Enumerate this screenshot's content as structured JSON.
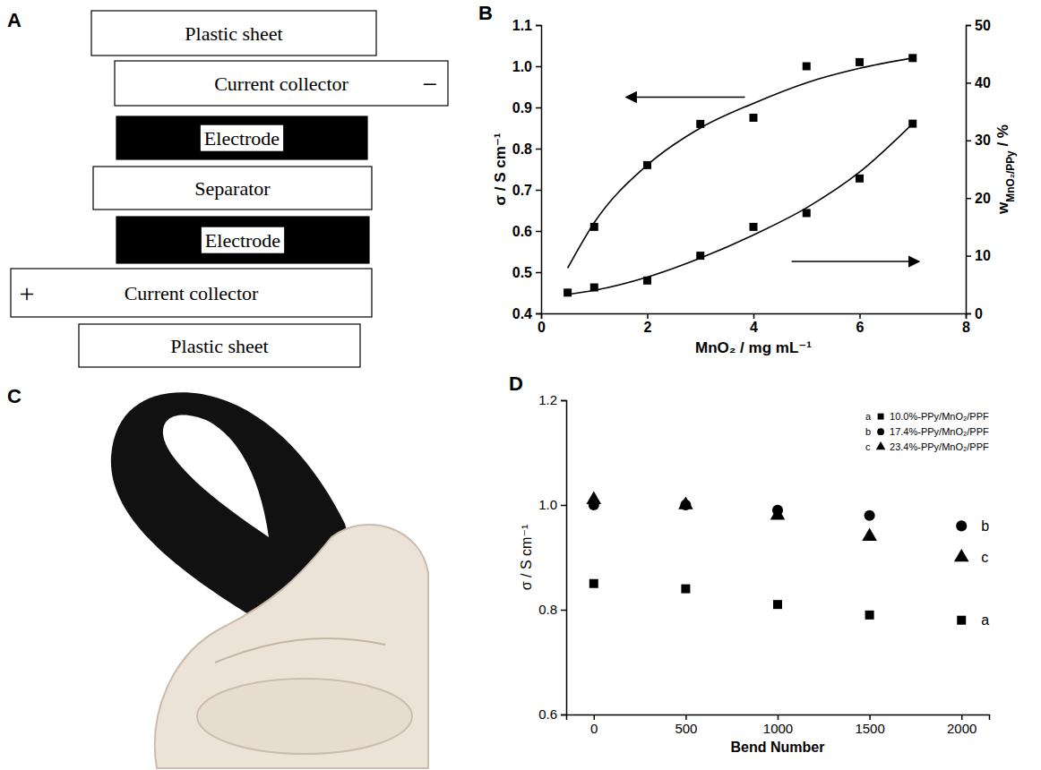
{
  "diagram": {
    "panel": "A",
    "layers": [
      {
        "label": "Plastic sheet",
        "color": "#ffffff"
      },
      {
        "label": "Current collector",
        "sign": "−",
        "color": "#ffffff"
      },
      {
        "label": "Electrode",
        "color": "#000000"
      },
      {
        "label": "Separator",
        "color": "#ffffff"
      },
      {
        "label": "Electrode",
        "color": "#000000"
      },
      {
        "label": "Current collector",
        "sign": "+",
        "color": "#ffffff"
      },
      {
        "label": "Plastic sheet",
        "color": "#ffffff"
      }
    ]
  },
  "photo": {
    "panel": "C"
  },
  "chart_data": [
    {
      "panel": "B",
      "type": "scatter",
      "xlabel": "MnO₂ / mg mL⁻¹",
      "ylabel": "σ / S cm⁻¹",
      "y2label": "wMnO₂/PPy / %",
      "xlim": [
        0,
        8
      ],
      "xticks": [
        0,
        2,
        4,
        6,
        8
      ],
      "ylim": [
        0.4,
        1.1
      ],
      "yticks": [
        0.4,
        0.5,
        0.6,
        0.7,
        0.8,
        0.9,
        {
          "value": 1,
          "label": "1.0"
        },
        1.1
      ],
      "y2lim": [
        0,
        50
      ],
      "y2ticks": [
        0,
        10,
        20,
        30,
        40,
        50
      ],
      "series": [
        {
          "type": "scatter",
          "marker": "square",
          "color": "#000000",
          "x": [
            1,
            2,
            3,
            4,
            5,
            6,
            7
          ],
          "values": [
            0.61,
            0.76,
            0.86,
            0.875,
            1,
            1.01,
            1.02
          ]
        },
        {
          "type": "line",
          "line_style": "solid",
          "color": "#000000",
          "x": [
            0.5,
            1,
            2,
            3,
            4,
            5,
            6,
            7
          ],
          "values": [
            0.51,
            0.62,
            0.76,
            0.85,
            0.91,
            0.96,
            0.995,
            1.02
          ]
        },
        {
          "type": "scatter",
          "marker": "square",
          "color": "#000000",
          "axis": "y2",
          "x": [
            0.5,
            1,
            2,
            3,
            4,
            5,
            6,
            7
          ],
          "values": [
            3.6,
            4.5,
            5.7,
            10,
            15,
            17.4,
            23.4,
            32.9
          ]
        },
        {
          "type": "line",
          "line_style": "solid",
          "color": "#000000",
          "axis": "y2",
          "x": [
            0.5,
            1,
            2,
            3,
            4,
            5,
            6,
            7
          ],
          "values": [
            3.3,
            4,
            6.3,
            9.6,
            13.6,
            18.3,
            24.5,
            32.9
          ]
        }
      ]
    },
    {
      "panel": "D",
      "type": "scatter",
      "xlabel": "Bend Number",
      "ylabel": "σ / S cm⁻¹",
      "x": [
        0,
        500,
        1000,
        1500,
        2000
      ],
      "xlim": [
        -150,
        2150
      ],
      "xticks": [
        0,
        500,
        1000,
        1500,
        2000
      ],
      "ylim": [
        0.6,
        1.2
      ],
      "yticks": [
        0.6,
        0.8,
        {
          "value": 1,
          "label": "1.0"
        },
        1.2
      ],
      "legend": "upper right",
      "series": [
        {
          "name": "10.0%-PPy/MnO₂/PPF",
          "label": "a",
          "marker": "square",
          "color": "#000000",
          "values": [
            0.85,
            0.84,
            0.81,
            0.79,
            0.78
          ]
        },
        {
          "name": "17.4%-PPy/MnO₂/PPF",
          "label": "b",
          "marker": "circle",
          "color": "#000000",
          "values": [
            1,
            1,
            0.99,
            0.98,
            0.96
          ]
        },
        {
          "name": "23.4%-PPy/MnO₂/PPF",
          "label": "c",
          "marker": "triangle",
          "color": "#000000",
          "values": [
            1.01,
            1,
            0.98,
            0.94,
            0.9
          ]
        }
      ]
    }
  ]
}
